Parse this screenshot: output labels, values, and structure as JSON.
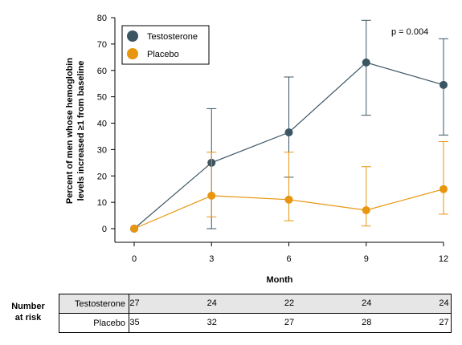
{
  "chart_data": {
    "type": "line",
    "x": [
      0,
      3,
      6,
      9,
      12
    ],
    "xlabel": "Month",
    "ylabel_lines": [
      "Percent of men whose hemoglobin",
      "levels increased ≥1 from baseline"
    ],
    "xlim": [
      0,
      12
    ],
    "ylim": [
      0,
      80
    ],
    "y_ticks": [
      0,
      10,
      20,
      30,
      40,
      50,
      60,
      70,
      80
    ],
    "x_ticks": [
      0,
      3,
      6,
      9,
      12
    ],
    "grid": false,
    "legend_position": "top-left",
    "annotation": "p = 0.004",
    "series": [
      {
        "name": "Testosterone",
        "color": "#3b5563",
        "values": [
          0,
          25,
          36.5,
          63,
          54.5
        ],
        "error_low": [
          0,
          0,
          19.5,
          43,
          35.5
        ],
        "error_high": [
          0,
          45.5,
          57.5,
          79,
          72
        ]
      },
      {
        "name": "Placebo",
        "color": "#e8950f",
        "values": [
          0,
          12.5,
          11,
          7,
          15
        ],
        "error_low": [
          0,
          4.5,
          3,
          1,
          5.5
        ],
        "error_high": [
          0,
          29,
          29,
          23.5,
          33
        ]
      }
    ]
  },
  "risk_table": {
    "heading_lines": [
      "Number",
      "at risk"
    ],
    "rows": [
      {
        "name": "Testosterone",
        "values": [
          "27",
          "24",
          "22",
          "24",
          "24"
        ]
      },
      {
        "name": "Placebo",
        "values": [
          "35",
          "32",
          "27",
          "28",
          "27"
        ]
      }
    ]
  }
}
